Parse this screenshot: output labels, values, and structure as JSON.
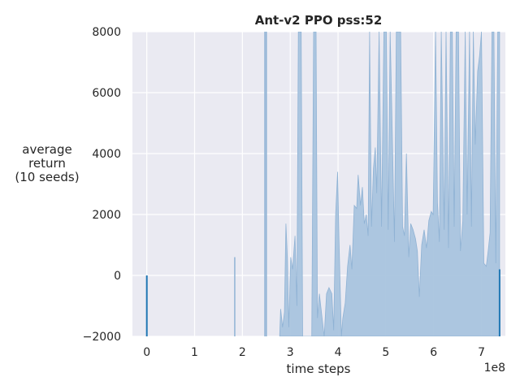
{
  "chart_data": {
    "type": "area",
    "title": "Ant-v2 PPO pss:52",
    "xlabel": "time steps",
    "ylabel_lines": [
      "average",
      "return",
      "(10 seeds)"
    ],
    "x_multiplier_label": "1e8",
    "xlim": [
      -0.3,
      7.5
    ],
    "ylim": [
      -2000,
      8000
    ],
    "xticks": [
      0,
      1,
      2,
      3,
      4,
      5,
      6,
      7
    ],
    "yticks": [
      -2000,
      0,
      2000,
      4000,
      6000,
      8000
    ],
    "grid": true,
    "colors": {
      "background": "#eaeaf2",
      "grid": "#ffffff",
      "band_fill": "#a9c4de",
      "band_edge": "#8fb2d4",
      "line": "#1f77b4"
    },
    "spikes": [
      {
        "x": 1.84,
        "low": -2000,
        "high": 600
      },
      {
        "x": 2.47,
        "low": -2000,
        "high": 8000
      },
      {
        "x": 2.5,
        "low": -2000,
        "high": 8000
      }
    ],
    "series": [
      {
        "values_units": "x in 1e8 time steps, y in average return",
        "mean_line": [
          [
            0.0,
            -2000
          ],
          [
            0.0,
            0
          ]
        ],
        "end_line": [
          [
            7.38,
            -2000
          ],
          [
            7.38,
            200
          ]
        ],
        "band_upper": [
          [
            2.78,
            -2000
          ],
          [
            2.8,
            -1100
          ],
          [
            2.84,
            -1700
          ],
          [
            2.88,
            -1200
          ],
          [
            2.91,
            1700
          ],
          [
            2.94,
            600
          ],
          [
            2.97,
            -1700
          ],
          [
            3.01,
            600
          ],
          [
            3.05,
            200
          ],
          [
            3.1,
            1300
          ],
          [
            3.14,
            -1000
          ],
          [
            3.17,
            8000
          ],
          [
            3.23,
            8000
          ],
          [
            3.26,
            -2000
          ],
          [
            3.45,
            -2000
          ],
          [
            3.49,
            8000
          ],
          [
            3.54,
            8000
          ],
          [
            3.57,
            -1400
          ],
          [
            3.61,
            -600
          ],
          [
            3.66,
            -1300
          ],
          [
            3.71,
            -2000
          ],
          [
            3.76,
            -600
          ],
          [
            3.81,
            -400
          ],
          [
            3.87,
            -600
          ],
          [
            3.91,
            -1800
          ],
          [
            3.95,
            2000
          ],
          [
            3.99,
            3400
          ],
          [
            4.02,
            1200
          ],
          [
            4.07,
            -2000
          ],
          [
            4.1,
            -1400
          ],
          [
            4.15,
            -900
          ],
          [
            4.2,
            300
          ],
          [
            4.25,
            1000
          ],
          [
            4.29,
            200
          ],
          [
            4.34,
            2300
          ],
          [
            4.39,
            2200
          ],
          [
            4.42,
            3300
          ],
          [
            4.47,
            2300
          ],
          [
            4.51,
            2900
          ],
          [
            4.55,
            1700
          ],
          [
            4.59,
            2000
          ],
          [
            4.63,
            1300
          ],
          [
            4.66,
            8000
          ],
          [
            4.7,
            1600
          ],
          [
            4.74,
            3500
          ],
          [
            4.78,
            4200
          ],
          [
            4.81,
            2700
          ],
          [
            4.86,
            8000
          ],
          [
            4.91,
            1600
          ],
          [
            4.96,
            8000
          ],
          [
            5.01,
            8000
          ],
          [
            5.05,
            1500
          ],
          [
            5.09,
            8000
          ],
          [
            5.14,
            4300
          ],
          [
            5.18,
            1100
          ],
          [
            5.22,
            8000
          ],
          [
            5.31,
            8000
          ],
          [
            5.35,
            1600
          ],
          [
            5.39,
            1300
          ],
          [
            5.43,
            4000
          ],
          [
            5.48,
            600
          ],
          [
            5.52,
            1700
          ],
          [
            5.57,
            1500
          ],
          [
            5.62,
            1200
          ],
          [
            5.66,
            800
          ],
          [
            5.7,
            -700
          ],
          [
            5.75,
            1000
          ],
          [
            5.8,
            1500
          ],
          [
            5.85,
            900
          ],
          [
            5.9,
            1800
          ],
          [
            5.95,
            2100
          ],
          [
            5.99,
            2000
          ],
          [
            6.04,
            8000
          ],
          [
            6.08,
            2400
          ],
          [
            6.12,
            1100
          ],
          [
            6.16,
            8000
          ],
          [
            6.22,
            1500
          ],
          [
            6.26,
            8000
          ],
          [
            6.31,
            900
          ],
          [
            6.35,
            8000
          ],
          [
            6.39,
            8000
          ],
          [
            6.43,
            1600
          ],
          [
            6.47,
            8000
          ],
          [
            6.52,
            8000
          ],
          [
            6.56,
            800
          ],
          [
            6.61,
            1800
          ],
          [
            6.66,
            8000
          ],
          [
            6.7,
            2000
          ],
          [
            6.75,
            8000
          ],
          [
            6.79,
            1600
          ],
          [
            6.83,
            8000
          ],
          [
            6.87,
            4300
          ],
          [
            6.92,
            6700
          ],
          [
            6.96,
            7200
          ],
          [
            7.0,
            8000
          ],
          [
            7.05,
            400
          ],
          [
            7.1,
            300
          ],
          [
            7.14,
            800
          ],
          [
            7.18,
            1400
          ],
          [
            7.22,
            8000
          ],
          [
            7.26,
            8000
          ],
          [
            7.3,
            400
          ],
          [
            7.34,
            8000
          ],
          [
            7.38,
            8000
          ]
        ],
        "band_lower": -2000
      }
    ]
  }
}
